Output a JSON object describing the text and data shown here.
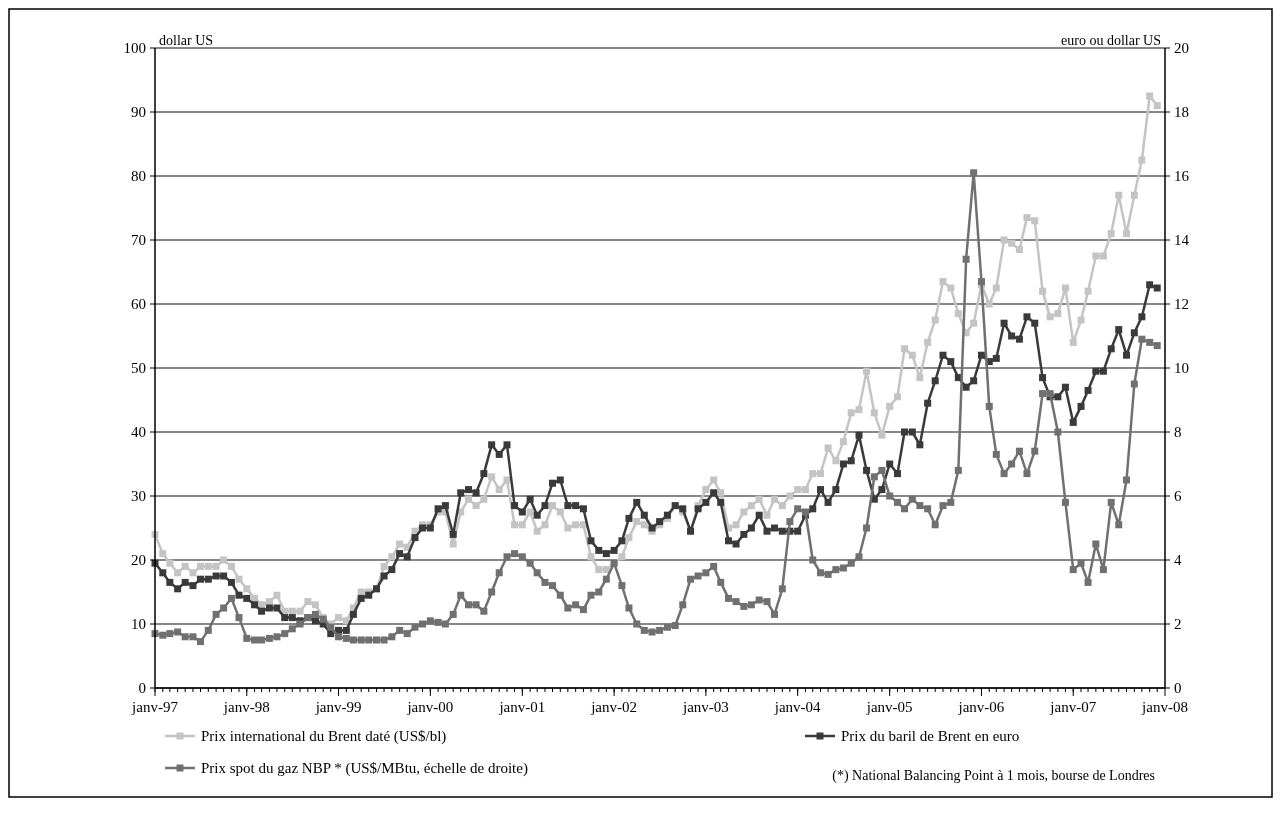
{
  "chart_data": {
    "type": "line",
    "ylabel": "dollar US",
    "y2label": "euro ou dollar US",
    "x": [
      "1997-01",
      "1997-02",
      "1997-03",
      "1997-04",
      "1997-05",
      "1997-06",
      "1997-07",
      "1997-08",
      "1997-09",
      "1997-10",
      "1997-11",
      "1997-12",
      "1998-01",
      "1998-02",
      "1998-03",
      "1998-04",
      "1998-05",
      "1998-06",
      "1998-07",
      "1998-08",
      "1998-09",
      "1998-10",
      "1998-11",
      "1998-12",
      "1999-01",
      "1999-02",
      "1999-03",
      "1999-04",
      "1999-05",
      "1999-06",
      "1999-07",
      "1999-08",
      "1999-09",
      "1999-10",
      "1999-11",
      "1999-12",
      "2000-01",
      "2000-02",
      "2000-03",
      "2000-04",
      "2000-05",
      "2000-06",
      "2000-07",
      "2000-08",
      "2000-09",
      "2000-10",
      "2000-11",
      "2000-12",
      "2001-01",
      "2001-02",
      "2001-03",
      "2001-04",
      "2001-05",
      "2001-06",
      "2001-07",
      "2001-08",
      "2001-09",
      "2001-10",
      "2001-11",
      "2001-12",
      "2002-01",
      "2002-02",
      "2002-03",
      "2002-04",
      "2002-05",
      "2002-06",
      "2002-07",
      "2002-08",
      "2002-09",
      "2002-10",
      "2002-11",
      "2002-12",
      "2003-01",
      "2003-02",
      "2003-03",
      "2003-04",
      "2003-05",
      "2003-06",
      "2003-07",
      "2003-08",
      "2003-09",
      "2003-10",
      "2003-11",
      "2003-12",
      "2004-01",
      "2004-02",
      "2004-03",
      "2004-04",
      "2004-05",
      "2004-06",
      "2004-07",
      "2004-08",
      "2004-09",
      "2004-10",
      "2004-11",
      "2004-12",
      "2005-01",
      "2005-02",
      "2005-03",
      "2005-04",
      "2005-05",
      "2005-06",
      "2005-07",
      "2005-08",
      "2005-09",
      "2005-10",
      "2005-11",
      "2005-12",
      "2006-01",
      "2006-02",
      "2006-03",
      "2006-04",
      "2006-05",
      "2006-06",
      "2006-07",
      "2006-08",
      "2006-09",
      "2006-10",
      "2006-11",
      "2006-12",
      "2007-01",
      "2007-02",
      "2007-03",
      "2007-04",
      "2007-05",
      "2007-06",
      "2007-07",
      "2007-08",
      "2007-09",
      "2007-10",
      "2007-11",
      "2007-12"
    ],
    "series": [
      {
        "name": "Prix international du Brent daté (US$/bl)",
        "color": "#c4c4c4",
        "values": [
          24,
          21,
          19.5,
          18,
          19,
          18,
          19,
          19,
          19,
          20,
          19,
          17,
          15.5,
          14,
          13,
          13.5,
          14.5,
          12,
          12,
          12,
          13.5,
          13,
          11,
          10,
          11,
          10.5,
          12.5,
          15,
          15,
          15.5,
          19,
          20.5,
          22.5,
          22,
          24.5,
          25.5,
          25.5,
          27.5,
          27.5,
          22.5,
          27.5,
          29.5,
          28.5,
          29.5,
          33,
          31,
          32.5,
          25.5,
          25.5,
          27.5,
          24.5,
          25.5,
          28.5,
          27.5,
          25,
          25.5,
          25.5,
          20.5,
          18.5,
          18.5,
          19.5,
          20.5,
          23.5,
          26,
          25.5,
          24.5,
          25.5,
          26.5,
          28.5,
          27.5,
          24.5,
          28.5,
          31,
          32.5,
          30.5,
          25,
          25.5,
          27.5,
          28.5,
          29.5,
          27,
          29.5,
          28.5,
          30,
          31,
          31,
          33.5,
          33.5,
          37.5,
          35.5,
          38.5,
          43,
          43.5,
          49.5,
          43,
          39.5,
          44,
          45.5,
          53,
          52,
          48.5,
          54,
          57.5,
          63.5,
          62.5,
          58.5,
          55.5,
          57,
          63,
          60,
          62.5,
          70,
          69.5,
          68.5,
          73.5,
          73,
          62,
          58,
          58.5,
          62.5,
          54,
          57.5,
          62,
          67.5,
          67.5,
          71,
          77,
          71,
          77,
          82.5,
          92.5,
          91
        ]
      },
      {
        "name": "Prix du baril de Brent en euro",
        "color": "#3a3a3a",
        "values": [
          19.5,
          18,
          16.5,
          15.5,
          16.5,
          16,
          17,
          17,
          17.5,
          17.5,
          16.5,
          14.5,
          14,
          13,
          12,
          12.5,
          12.5,
          11,
          11,
          10.5,
          11,
          10.5,
          10,
          8.5,
          9,
          9,
          11.5,
          14,
          14.5,
          15.5,
          17.5,
          18.5,
          21,
          20.5,
          23.5,
          25,
          25,
          28,
          28.5,
          24,
          30.5,
          31,
          30.5,
          33.5,
          38,
          36.5,
          38,
          28.5,
          27.5,
          29.5,
          27,
          28.5,
          32,
          32.5,
          28.5,
          28.5,
          28,
          23,
          21.5,
          21,
          21.5,
          23,
          26.5,
          29,
          27,
          25,
          26,
          27,
          28.5,
          28,
          24.5,
          28,
          29,
          30.5,
          29,
          23,
          22.5,
          24,
          25,
          27,
          24.5,
          25,
          24.5,
          24.5,
          24.5,
          27,
          28,
          31,
          29,
          31,
          35,
          35.5,
          39.5,
          34,
          29.5,
          31,
          35,
          33.5,
          40,
          40,
          38,
          44.5,
          48,
          52,
          51,
          48.5,
          47,
          48,
          52,
          51,
          51.5,
          57,
          55,
          54.5,
          58,
          57,
          48.5,
          45.5,
          45.5,
          47,
          41.5,
          44,
          46.5,
          49.5,
          49.5,
          53,
          56,
          52,
          55.5,
          58,
          63,
          62.5
        ]
      },
      {
        "name": "Prix spot du gaz NBP * (US$/MBtu, échelle de droite)",
        "color": "#707070",
        "axis": "y2",
        "values": [
          1.7,
          1.65,
          1.7,
          1.75,
          1.6,
          1.6,
          1.45,
          1.8,
          2.3,
          2.5,
          2.8,
          2.2,
          1.55,
          1.5,
          1.5,
          1.55,
          1.6,
          1.7,
          1.85,
          2,
          2.2,
          2.3,
          2.15,
          1.9,
          1.6,
          1.55,
          1.5,
          1.5,
          1.5,
          1.5,
          1.5,
          1.6,
          1.8,
          1.7,
          1.9,
          2,
          2.1,
          2.05,
          2,
          2.3,
          2.9,
          2.6,
          2.6,
          2.4,
          3,
          3.6,
          4.1,
          4.2,
          4.1,
          3.9,
          3.6,
          3.3,
          3.2,
          2.9,
          2.5,
          2.6,
          2.45,
          2.9,
          3,
          3.4,
          3.9,
          3.2,
          2.5,
          2,
          1.8,
          1.75,
          1.8,
          1.9,
          1.95,
          2.6,
          3.4,
          3.5,
          3.6,
          3.8,
          3.3,
          2.8,
          2.7,
          2.55,
          2.6,
          2.75,
          2.7,
          2.3,
          3.1,
          5.2,
          5.6,
          5.5,
          4,
          3.6,
          3.55,
          3.7,
          3.75,
          3.9,
          4.1,
          5,
          6.6,
          6.8,
          6,
          5.8,
          5.6,
          5.9,
          5.7,
          5.6,
          5.1,
          5.7,
          5.8,
          6.8,
          13.4,
          16.1,
          12.7,
          8.8,
          7.3,
          6.7,
          7,
          7.4,
          6.7,
          7.4,
          9.2,
          9.2,
          8,
          5.8,
          3.7,
          3.9,
          3.3,
          4.5,
          3.7,
          5.8,
          5.1,
          6.5,
          9.5,
          10.9,
          10.8,
          10.7
        ]
      }
    ],
    "xlim": [
      "1997-01",
      "2008-01"
    ],
    "xticks": [
      {
        "value": "1997-01",
        "label": "janv-97"
      },
      {
        "value": "1998-01",
        "label": "janv-98"
      },
      {
        "value": "1999-01",
        "label": "janv-99"
      },
      {
        "value": "2000-01",
        "label": "janv-00"
      },
      {
        "value": "2001-01",
        "label": "janv-01"
      },
      {
        "value": "2002-01",
        "label": "janv-02"
      },
      {
        "value": "2003-01",
        "label": "janv-03"
      },
      {
        "value": "2004-01",
        "label": "janv-04"
      },
      {
        "value": "2005-01",
        "label": "janv-05"
      },
      {
        "value": "2006-01",
        "label": "janv-06"
      },
      {
        "value": "2007-01",
        "label": "janv-07"
      },
      {
        "value": "2008-01",
        "label": "janv-08"
      }
    ],
    "ylim": [
      0,
      100
    ],
    "yticks": [
      0,
      10,
      20,
      30,
      40,
      50,
      60,
      70,
      80,
      90,
      100
    ],
    "y2lim": [
      0,
      20
    ],
    "y2ticks": [
      0,
      2,
      4,
      6,
      8,
      10,
      12,
      14,
      16,
      18,
      20
    ],
    "grid": "y",
    "marker": "square",
    "line_style": "solid",
    "legend": "bottom",
    "annotations": [
      "(*) National Balancing Point à 1 mois, bourse de Londres"
    ]
  }
}
